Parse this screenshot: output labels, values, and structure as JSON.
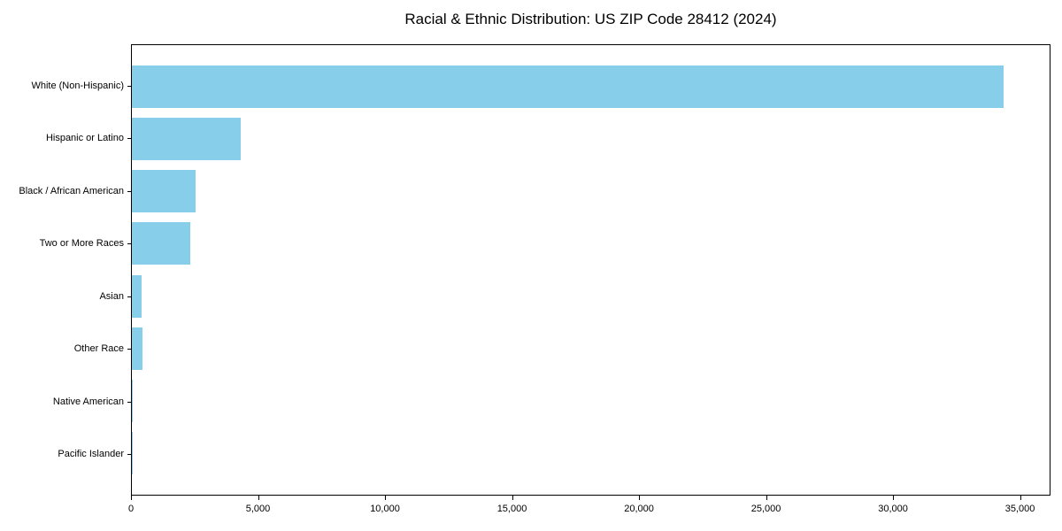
{
  "chart_data": {
    "type": "bar",
    "orientation": "horizontal",
    "title": "Racial & Ethnic Distribution: US ZIP Code 28412 (2024)",
    "categories": [
      "White (Non-Hispanic)",
      "Hispanic or Latino",
      "Black / African American",
      "Two or More Races",
      "Asian",
      "Other Race",
      "Native American",
      "Pacific Islander"
    ],
    "values": [
      34400,
      4280,
      2510,
      2320,
      380,
      430,
      30,
      10
    ],
    "xlabel": "",
    "ylabel": "",
    "xlim": [
      0,
      36200
    ],
    "xticks": [
      0,
      5000,
      10000,
      15000,
      20000,
      25000,
      30000,
      35000
    ],
    "xtick_labels": [
      "0",
      "5,000",
      "10,000",
      "15,000",
      "20,000",
      "25,000",
      "30,000",
      "35,000"
    ],
    "grid": false,
    "legend": "none",
    "bar_color": "#87CEEB",
    "axis_color": "#000000",
    "background_color": "#FFFFFF"
  }
}
